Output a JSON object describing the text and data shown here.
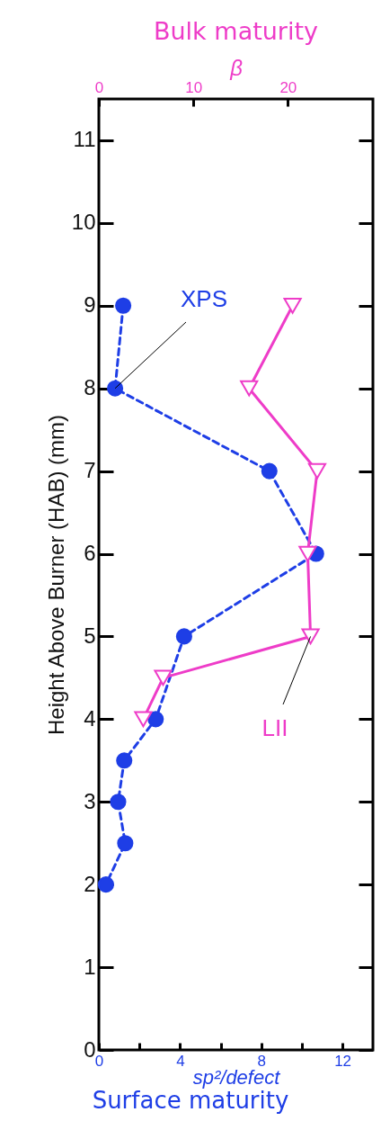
{
  "chart_data": {
    "type": "line",
    "title": "Bulk maturity",
    "xlabel": "sp²/defect",
    "x2label": "β",
    "ylabel": "Height Above Burner (HAB) (mm)",
    "annotations": [
      "Surface maturity"
    ],
    "xlim": [
      0,
      13.5
    ],
    "xticks": [
      0,
      {
        "value": 2,
        "label": null
      },
      4,
      {
        "value": 6,
        "label": null
      },
      8,
      {
        "value": 10,
        "label": null
      },
      12
    ],
    "x2lim": [
      0,
      29
    ],
    "x2ticks": [
      0,
      10,
      20
    ],
    "ylim": [
      0,
      11.5
    ],
    "yticks": [
      0,
      1,
      2,
      3,
      4,
      5,
      6,
      7,
      8,
      9,
      10,
      11
    ],
    "grid": false,
    "series": [
      {
        "name": "XPS",
        "color": "#1e3ee6",
        "marker": "circle",
        "line_style": "dashed",
        "x": [
          1.2,
          0.8,
          8.4,
          10.7,
          4.2,
          2.8,
          1.25,
          0.95,
          1.3,
          0.35
        ],
        "values": [
          9,
          8,
          7,
          6,
          5,
          4,
          3.5,
          3,
          2.5,
          2
        ]
      },
      {
        "name": "LII",
        "color": "#ee3cc8",
        "marker": "triangle",
        "line_style": "solid",
        "axis": "x2",
        "x": [
          20.5,
          15.9,
          23.1,
          22.1,
          22.4,
          6.8,
          4.7
        ],
        "values": [
          9,
          8,
          7,
          6,
          5,
          4.5,
          4
        ]
      }
    ]
  }
}
